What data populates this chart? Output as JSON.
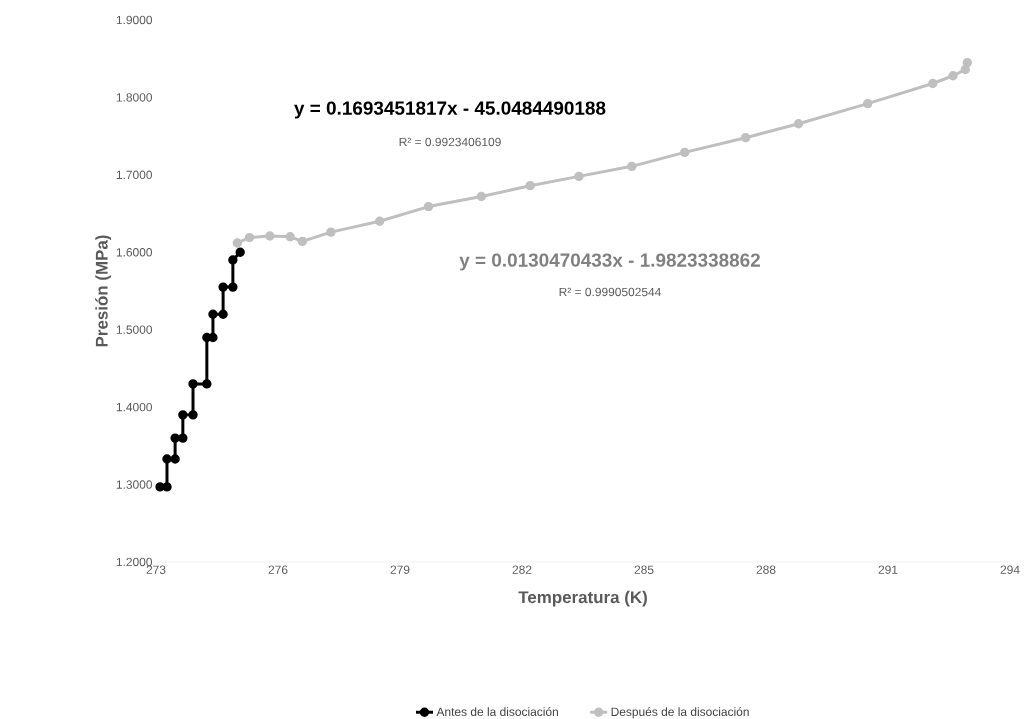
{
  "chart_data": {
    "type": "line",
    "xlabel": "Temperatura (K)",
    "ylabel": "Presión (MPa)",
    "xlim": [
      273,
      294
    ],
    "xticks": [
      273,
      276,
      279,
      282,
      285,
      288,
      291,
      294
    ],
    "ylim": [
      1.2,
      1.9
    ],
    "yticks": [
      {
        "value": 1.2,
        "label": "1.2000"
      },
      {
        "value": 1.3,
        "label": "1.3000"
      },
      {
        "value": 1.4,
        "label": "1.4000"
      },
      {
        "value": 1.5,
        "label": "1.5000"
      },
      {
        "value": 1.6,
        "label": "1.6000"
      },
      {
        "value": 1.7,
        "label": "1.7000"
      },
      {
        "value": 1.8,
        "label": "1.8000"
      },
      {
        "value": 1.9,
        "label": "1.9000"
      }
    ],
    "series": [
      {
        "name": "Antes de la disociación",
        "color": "#000000",
        "x": [
          273.1,
          273.27,
          273.27,
          273.47,
          273.47,
          273.66,
          273.66,
          273.91,
          273.91,
          274.25,
          274.25,
          274.4,
          274.4,
          274.65,
          274.65,
          274.89,
          274.89,
          275.07
        ],
        "values": [
          1.297,
          1.297,
          1.333,
          1.333,
          1.36,
          1.36,
          1.39,
          1.39,
          1.43,
          1.43,
          1.49,
          1.49,
          1.52,
          1.52,
          1.555,
          1.555,
          1.59,
          1.6
        ]
      },
      {
        "name": "Después de la disociación",
        "color": "#bfbfbf",
        "x": [
          275.0,
          275.3,
          275.8,
          276.3,
          276.6,
          277.3,
          278.5,
          279.7,
          281.0,
          282.2,
          283.4,
          284.7,
          286.0,
          287.5,
          288.8,
          290.5,
          292.1,
          292.6,
          292.9,
          292.95
        ],
        "values": [
          1.612,
          1.619,
          1.621,
          1.62,
          1.614,
          1.626,
          1.64,
          1.659,
          1.672,
          1.686,
          1.698,
          1.711,
          1.729,
          1.748,
          1.766,
          1.792,
          1.818,
          1.828,
          1.836,
          1.845
        ]
      }
    ],
    "annotations": [
      "y = 0.1693451817x - 45.0484490188",
      "R² = 0.9923406109",
      "y = 0.0130470433x - 1.9823338862",
      "R² = 0.9990502544"
    ],
    "marker": "circle",
    "line_style": "solid",
    "grid": false,
    "legend": "bottom"
  }
}
